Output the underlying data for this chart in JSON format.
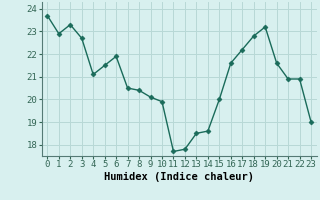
{
  "x": [
    0,
    1,
    2,
    3,
    4,
    5,
    6,
    7,
    8,
    9,
    10,
    11,
    12,
    13,
    14,
    15,
    16,
    17,
    18,
    19,
    20,
    21,
    22,
    23
  ],
  "y": [
    23.7,
    22.9,
    23.3,
    22.7,
    21.1,
    21.5,
    21.9,
    20.5,
    20.4,
    20.1,
    19.9,
    17.7,
    17.8,
    18.5,
    18.6,
    20.0,
    21.6,
    22.2,
    22.8,
    23.2,
    21.6,
    20.9,
    20.9,
    19.0
  ],
  "line_color": "#1a6b5a",
  "marker": "D",
  "marker_size": 2.5,
  "bg_color": "#d8f0ef",
  "grid_color": "#b8d8d6",
  "xlabel": "Humidex (Indice chaleur)",
  "ylim": [
    17.5,
    24.3
  ],
  "xlim": [
    -0.5,
    23.5
  ],
  "yticks": [
    18,
    19,
    20,
    21,
    22,
    23,
    24
  ],
  "xticks": [
    0,
    1,
    2,
    3,
    4,
    5,
    6,
    7,
    8,
    9,
    10,
    11,
    12,
    13,
    14,
    15,
    16,
    17,
    18,
    19,
    20,
    21,
    22,
    23
  ],
  "xlabel_fontsize": 7.5,
  "tick_fontsize": 6.5,
  "line_width": 1.0
}
